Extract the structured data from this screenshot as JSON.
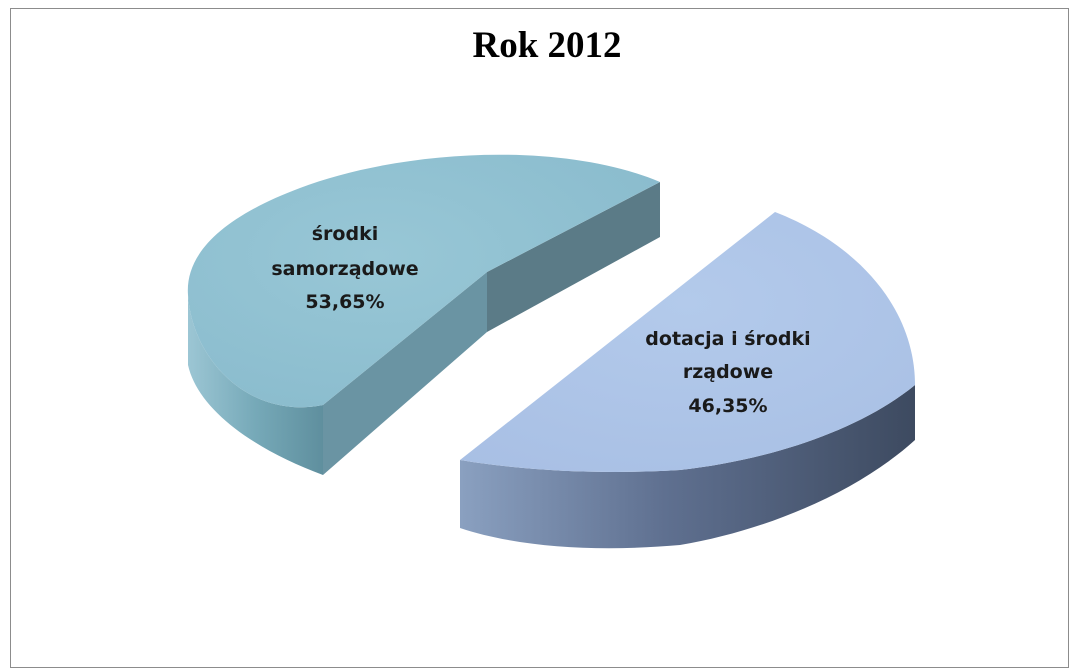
{
  "chart_data": {
    "type": "pie",
    "title": "Rok 2012",
    "slices": [
      {
        "label_lines": [
          "środki",
          "samorządowe",
          "53,65%"
        ],
        "label": "środki samorządowe",
        "value": 53.65,
        "value_label": "53,65%",
        "color": "#8fbfd0"
      },
      {
        "label_lines": [
          "dotacja i środki",
          "rządowe",
          "46,35%"
        ],
        "label": "dotacja i środki rządowe",
        "value": 46.35,
        "value_label": "46,35%",
        "color": "#abc3e7"
      }
    ],
    "style": "3d-exploded"
  }
}
